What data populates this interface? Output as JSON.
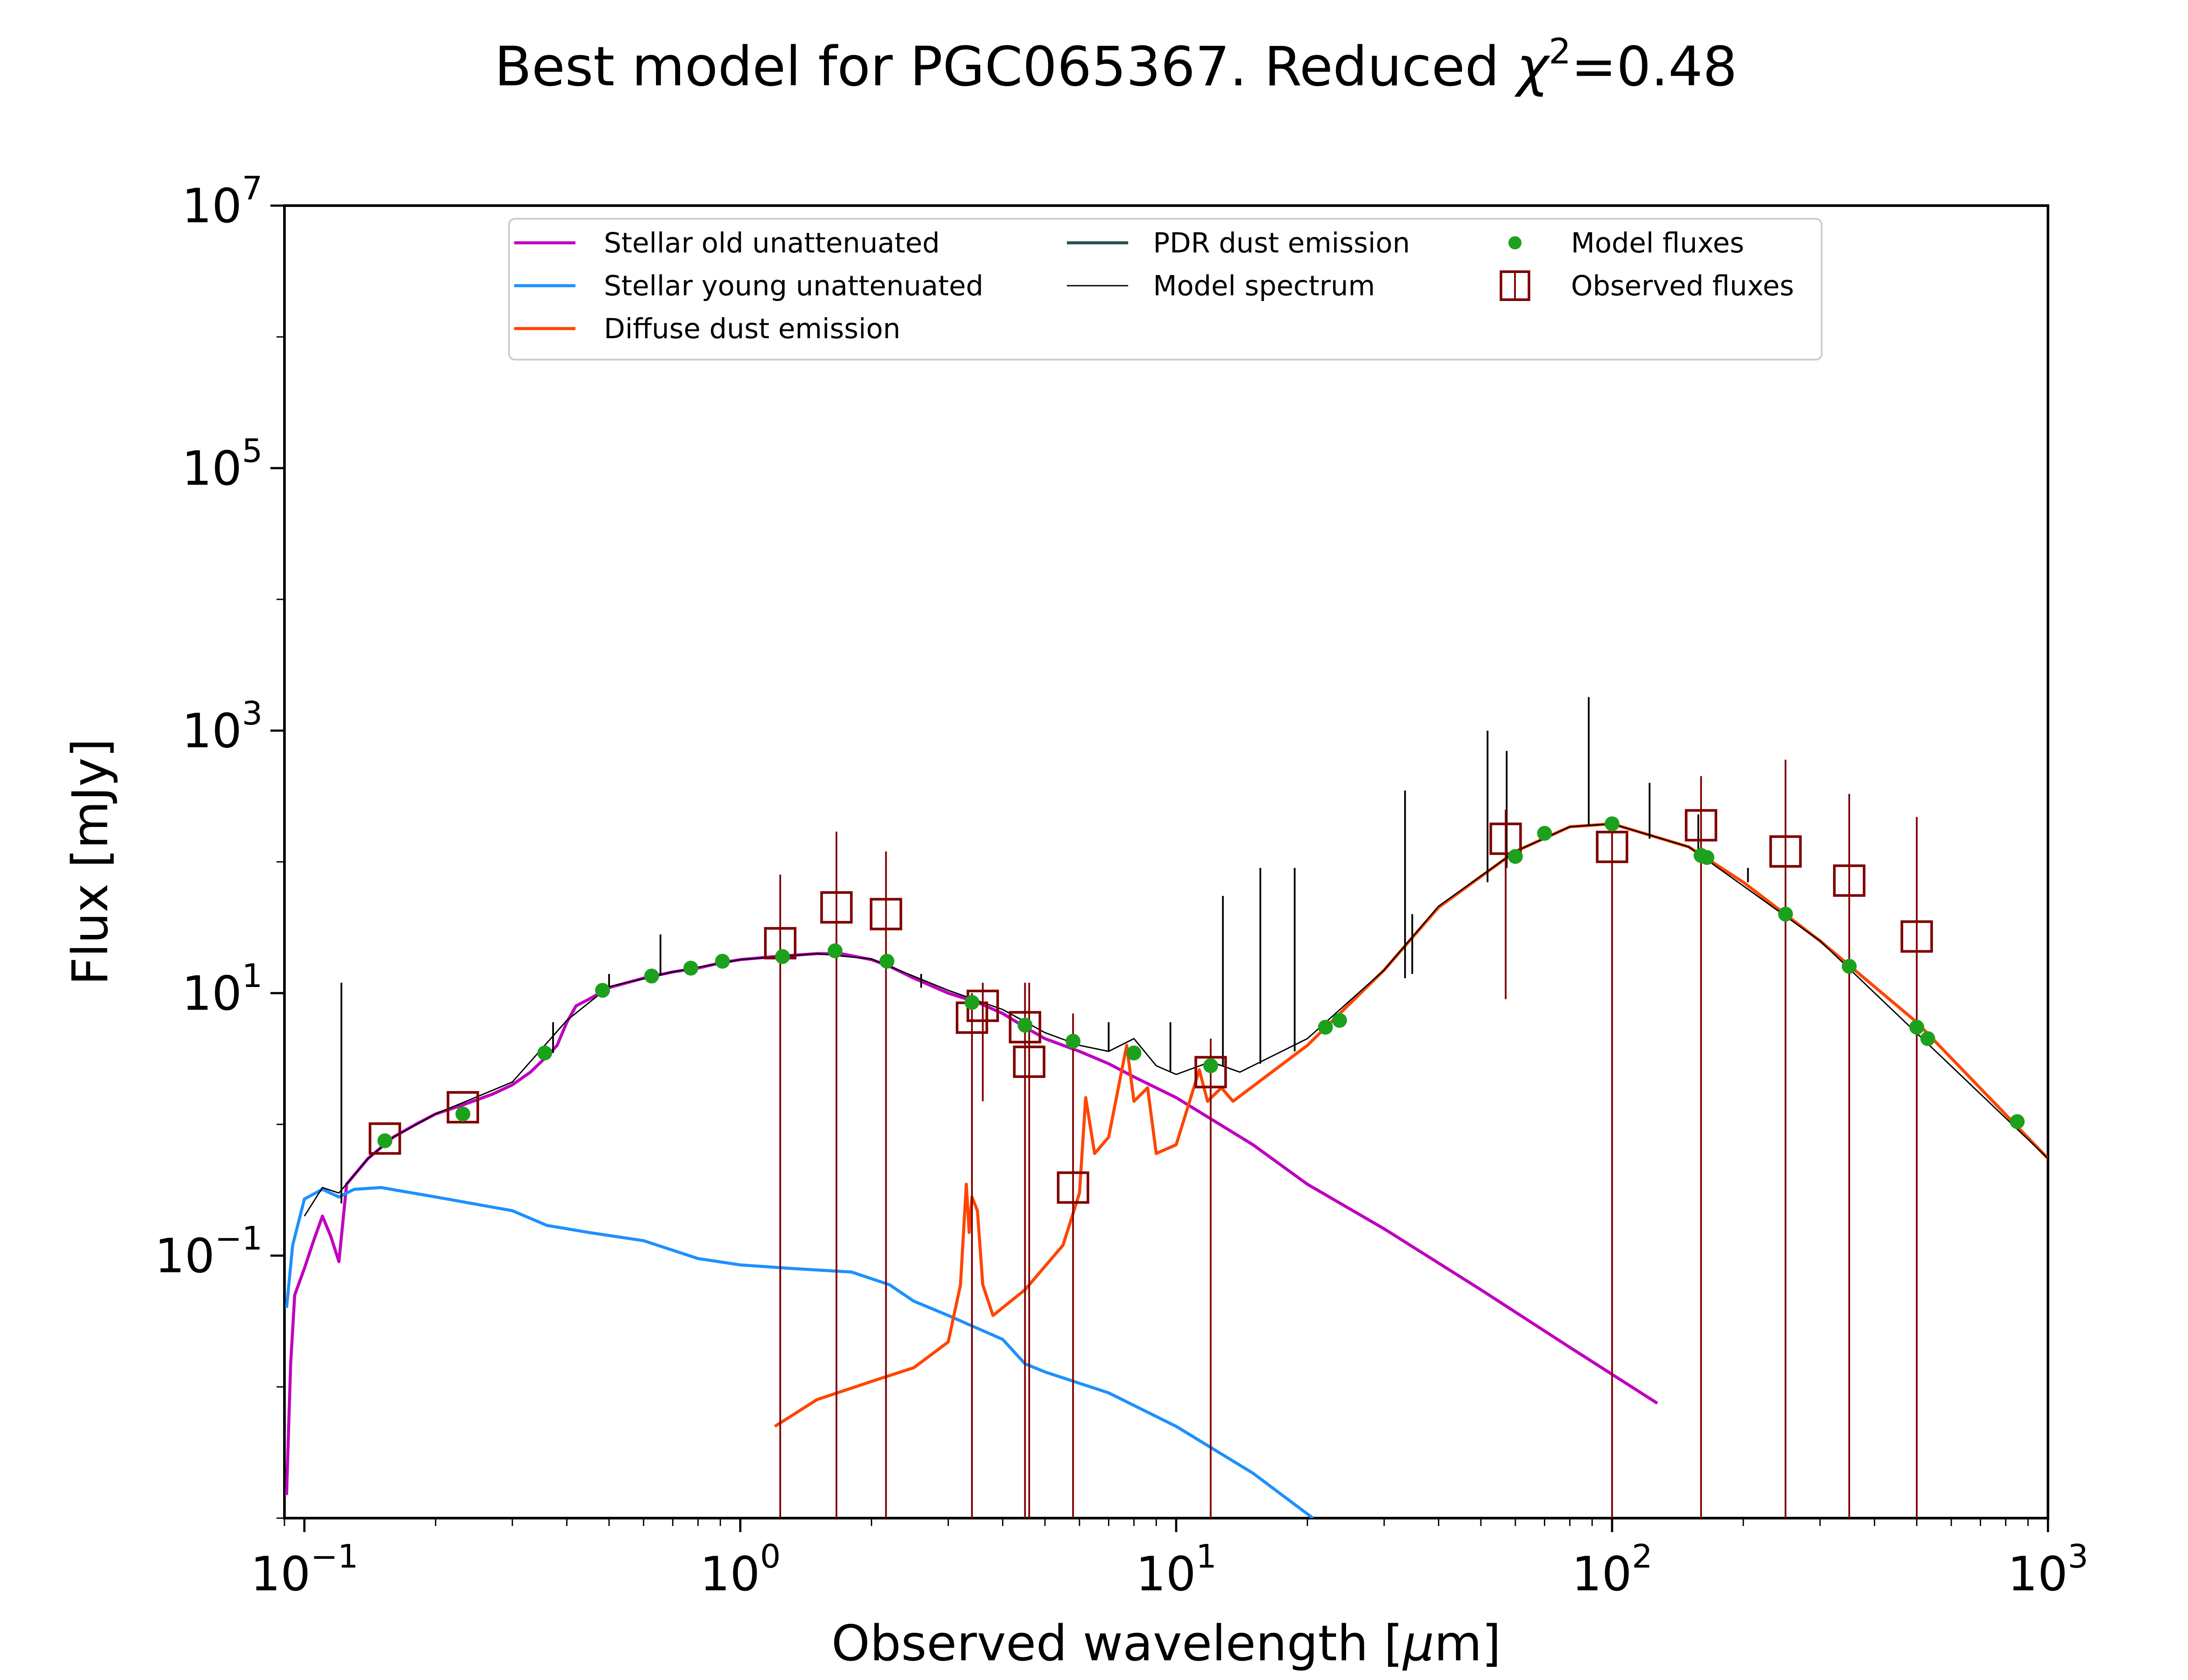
{
  "chart_data": {
    "type": "line",
    "title": "Best model for PGC065367. Reduced χ²=0.48",
    "title_parts": {
      "main": "Best model for PGC065367. Reduced ",
      "chi": "χ",
      "sup": "2",
      "value": "=0.48"
    },
    "xlabel_parts": {
      "text": "Observed wavelength [",
      "mu": "μ",
      "unit": "m]"
    },
    "ylabel": "Flux [mJy]",
    "xscale": "log",
    "yscale": "log",
    "xlim": [
      0.09,
      1000
    ],
    "ylim": [
      0.001,
      10000000
    ],
    "x_ticks": [
      {
        "value": 0.1,
        "base": "10",
        "exp": "−1"
      },
      {
        "value": 1,
        "base": "10",
        "exp": "0"
      },
      {
        "value": 10,
        "base": "10",
        "exp": "1"
      },
      {
        "value": 100,
        "base": "10",
        "exp": "2"
      },
      {
        "value": 1000,
        "base": "10",
        "exp": "3"
      }
    ],
    "y_ticks": [
      {
        "value": 0.1,
        "base": "10",
        "exp": "−1"
      },
      {
        "value": 10,
        "base": "10",
        "exp": "1"
      },
      {
        "value": 1000,
        "base": "10",
        "exp": "3"
      },
      {
        "value": 100000,
        "base": "10",
        "exp": "5"
      },
      {
        "value": 10000000,
        "base": "10",
        "exp": "7"
      }
    ],
    "grid": false,
    "legend_position": "top-center",
    "legend": [
      {
        "label": "Stellar old unattenuated",
        "color": "#bf00bf",
        "kind": "line"
      },
      {
        "label": "Stellar young unattenuated",
        "color": "#1e90ff",
        "kind": "line"
      },
      {
        "label": "Diffuse dust emission",
        "color": "#ff4500",
        "kind": "line"
      },
      {
        "label": "PDR dust emission",
        "color": "#2f4f4f",
        "kind": "line"
      },
      {
        "label": "Model spectrum",
        "color": "#000000",
        "kind": "thin-line"
      },
      {
        "label": "Model fluxes",
        "color": "#1ca11c",
        "kind": "dot"
      },
      {
        "label": "Observed fluxes",
        "color": "#800000",
        "kind": "square"
      }
    ],
    "series": [
      {
        "name": "Stellar old unattenuated",
        "color": "#bf00bf",
        "points": [
          [
            0.091,
            0.0015
          ],
          [
            0.093,
            0.015
          ],
          [
            0.095,
            0.05
          ],
          [
            0.1,
            0.08
          ],
          [
            0.105,
            0.13
          ],
          [
            0.11,
            0.2
          ],
          [
            0.115,
            0.14
          ],
          [
            0.12,
            0.09
          ],
          [
            0.125,
            0.35
          ],
          [
            0.14,
            0.55
          ],
          [
            0.16,
            0.8
          ],
          [
            0.18,
            1.0
          ],
          [
            0.2,
            1.2
          ],
          [
            0.23,
            1.4
          ],
          [
            0.27,
            1.7
          ],
          [
            0.3,
            2.0
          ],
          [
            0.33,
            2.5
          ],
          [
            0.36,
            3.3
          ],
          [
            0.38,
            4.0
          ],
          [
            0.4,
            6.0
          ],
          [
            0.42,
            8.0
          ],
          [
            0.45,
            9.0
          ],
          [
            0.5,
            11.0
          ],
          [
            0.6,
            13.0
          ],
          [
            0.7,
            14.5
          ],
          [
            0.8,
            15.5
          ],
          [
            0.9,
            17.0
          ],
          [
            1.0,
            18.0
          ],
          [
            1.2,
            19.0
          ],
          [
            1.5,
            20.0
          ],
          [
            1.7,
            20.0
          ],
          [
            2.0,
            18.0
          ],
          [
            2.2,
            16.0
          ],
          [
            2.5,
            13.0
          ],
          [
            3.0,
            10.0
          ],
          [
            3.5,
            8.5
          ],
          [
            4.0,
            7.0
          ],
          [
            4.5,
            5.5
          ],
          [
            5.0,
            4.5
          ],
          [
            6.0,
            3.6
          ],
          [
            7.0,
            2.9
          ],
          [
            8.0,
            2.3
          ],
          [
            10.0,
            1.6
          ],
          [
            15.0,
            0.7
          ],
          [
            20.0,
            0.35
          ],
          [
            30.0,
            0.16
          ],
          [
            50.0,
            0.055
          ],
          [
            80.0,
            0.02
          ],
          [
            127.0,
            0.0075
          ]
        ]
      },
      {
        "name": "Stellar young unattenuated",
        "color": "#1e90ff",
        "points": [
          [
            0.091,
            0.04
          ],
          [
            0.094,
            0.12
          ],
          [
            0.1,
            0.27
          ],
          [
            0.11,
            0.32
          ],
          [
            0.12,
            0.28
          ],
          [
            0.13,
            0.32
          ],
          [
            0.15,
            0.33
          ],
          [
            0.2,
            0.28
          ],
          [
            0.3,
            0.22
          ],
          [
            0.36,
            0.17
          ],
          [
            0.45,
            0.15
          ],
          [
            0.6,
            0.13
          ],
          [
            0.8,
            0.095
          ],
          [
            1.0,
            0.085
          ],
          [
            1.3,
            0.08
          ],
          [
            1.8,
            0.075
          ],
          [
            2.2,
            0.06
          ],
          [
            2.5,
            0.045
          ],
          [
            3.0,
            0.035
          ],
          [
            4.0,
            0.023
          ],
          [
            4.5,
            0.015
          ],
          [
            5.0,
            0.013
          ],
          [
            7.0,
            0.009
          ],
          [
            10.0,
            0.005
          ],
          [
            15.0,
            0.0022
          ],
          [
            20.6,
            0.001
          ]
        ]
      },
      {
        "name": "Diffuse dust emission",
        "color": "#ff4500",
        "points": [
          [
            1.2,
            0.005
          ],
          [
            1.5,
            0.008
          ],
          [
            2.0,
            0.011
          ],
          [
            2.5,
            0.014
          ],
          [
            3.0,
            0.022
          ],
          [
            3.2,
            0.06
          ],
          [
            3.3,
            0.35
          ],
          [
            3.35,
            0.15
          ],
          [
            3.4,
            0.28
          ],
          [
            3.5,
            0.22
          ],
          [
            3.6,
            0.06
          ],
          [
            3.8,
            0.035
          ],
          [
            4.5,
            0.055
          ],
          [
            5.5,
            0.12
          ],
          [
            6.0,
            0.3
          ],
          [
            6.2,
            1.6
          ],
          [
            6.5,
            0.6
          ],
          [
            7.0,
            0.8
          ],
          [
            7.7,
            4.0
          ],
          [
            8.0,
            1.5
          ],
          [
            8.6,
            1.9
          ],
          [
            9.0,
            0.6
          ],
          [
            10.0,
            0.7
          ],
          [
            11.3,
            2.6
          ],
          [
            11.8,
            1.5
          ],
          [
            12.7,
            1.9
          ],
          [
            13.5,
            1.5
          ],
          [
            20.0,
            4.0
          ],
          [
            30.0,
            15.0
          ],
          [
            40.0,
            45.0
          ],
          [
            60.0,
            120.0
          ],
          [
            80.0,
            185.0
          ],
          [
            100.0,
            195.0
          ],
          [
            150.0,
            130.0
          ],
          [
            200.0,
            70.0
          ],
          [
            300.0,
            25.0
          ],
          [
            500.0,
            6.0
          ],
          [
            1000.0,
            0.55
          ]
        ]
      },
      {
        "name": "Model spectrum",
        "color": "#000000",
        "points": [
          [
            0.1,
            0.2
          ],
          [
            0.11,
            0.33
          ],
          [
            0.12,
            0.3
          ],
          [
            0.14,
            0.55
          ],
          [
            0.16,
            0.8
          ],
          [
            0.2,
            1.2
          ],
          [
            0.3,
            2.1
          ],
          [
            0.4,
            6.2
          ],
          [
            0.5,
            11.2
          ],
          [
            0.7,
            14.5
          ],
          [
            1.0,
            18.0
          ],
          [
            1.5,
            20.0
          ],
          [
            2.0,
            18.2
          ],
          [
            3.0,
            10.5
          ],
          [
            4.0,
            7.5
          ],
          [
            5.0,
            5.0
          ],
          [
            6.0,
            4.0
          ],
          [
            7.0,
            3.6
          ],
          [
            8.0,
            4.5
          ],
          [
            9.0,
            2.8
          ],
          [
            10.0,
            2.4
          ],
          [
            12.0,
            3.0
          ],
          [
            14.0,
            2.5
          ],
          [
            20.0,
            4.5
          ],
          [
            30.0,
            15.0
          ],
          [
            40.0,
            46.0
          ],
          [
            60.0,
            120.0
          ],
          [
            80.0,
            185.0
          ],
          [
            100.0,
            195.0
          ],
          [
            150.0,
            130.0
          ],
          [
            300.0,
            25.0
          ],
          [
            1000.0,
            0.55
          ]
        ]
      }
    ],
    "emission_lines": [
      {
        "x": 0.1216,
        "y": [
          0.25,
          12
        ]
      },
      {
        "x": 0.372,
        "y": [
          3.5,
          6
        ]
      },
      {
        "x": 0.5,
        "y": [
          11,
          14
        ]
      },
      {
        "x": 0.656,
        "y": [
          14,
          28
        ]
      },
      {
        "x": 2.6,
        "y": [
          11,
          14
        ]
      },
      {
        "x": 7.0,
        "y": [
          3.6,
          6
        ]
      },
      {
        "x": 9.7,
        "y": [
          2.5,
          6
        ]
      },
      {
        "x": 12.8,
        "y": [
          2.8,
          55
        ]
      },
      {
        "x": 15.6,
        "y": [
          2.9,
          90
        ]
      },
      {
        "x": 18.7,
        "y": [
          3.6,
          90
        ]
      },
      {
        "x": 33.5,
        "y": [
          13,
          350
        ]
      },
      {
        "x": 34.8,
        "y": [
          14,
          40
        ]
      },
      {
        "x": 51.8,
        "y": [
          70,
          1000
        ]
      },
      {
        "x": 57.3,
        "y": [
          90,
          700
        ]
      },
      {
        "x": 88.4,
        "y": [
          190,
          1800
        ]
      },
      {
        "x": 121.9,
        "y": [
          150,
          400
        ]
      },
      {
        "x": 157.7,
        "y": [
          120,
          230
        ]
      },
      {
        "x": 205.0,
        "y": [
          70,
          90
        ]
      }
    ],
    "model_fluxes": [
      {
        "x": 0.153,
        "y": 0.75
      },
      {
        "x": 0.231,
        "y": 1.2
      },
      {
        "x": 0.356,
        "y": 3.5
      },
      {
        "x": 0.483,
        "y": 10.5
      },
      {
        "x": 0.626,
        "y": 13.5
      },
      {
        "x": 0.77,
        "y": 15.5
      },
      {
        "x": 0.91,
        "y": 17.5
      },
      {
        "x": 1.25,
        "y": 19.0
      },
      {
        "x": 1.65,
        "y": 21.0
      },
      {
        "x": 2.17,
        "y": 17.5
      },
      {
        "x": 3.4,
        "y": 8.5
      },
      {
        "x": 4.5,
        "y": 5.7
      },
      {
        "x": 5.8,
        "y": 4.3
      },
      {
        "x": 8.0,
        "y": 3.5
      },
      {
        "x": 12.0,
        "y": 2.8
      },
      {
        "x": 22.0,
        "y": 5.5
      },
      {
        "x": 23.7,
        "y": 6.2
      },
      {
        "x": 60.0,
        "y": 110.0
      },
      {
        "x": 70.0,
        "y": 165.0
      },
      {
        "x": 100.0,
        "y": 195.0
      },
      {
        "x": 160.0,
        "y": 112.0
      },
      {
        "x": 165.0,
        "y": 108.0
      },
      {
        "x": 250.0,
        "y": 40.0
      },
      {
        "x": 350.0,
        "y": 16.0
      },
      {
        "x": 500.0,
        "y": 5.5
      },
      {
        "x": 530.0,
        "y": 4.5
      },
      {
        "x": 850.0,
        "y": 1.05
      }
    ],
    "observed_fluxes": [
      {
        "x": 0.153,
        "y": 0.78,
        "ylo": 0.78,
        "yhi": 0.78
      },
      {
        "x": 0.231,
        "y": 1.35,
        "ylo": 1.35,
        "yhi": 1.35
      },
      {
        "x": 1.235,
        "y": 24.0,
        "ylo": 0.001,
        "yhi": 80.0
      },
      {
        "x": 1.662,
        "y": 45.0,
        "ylo": 0.001,
        "yhi": 170.0
      },
      {
        "x": 2.159,
        "y": 40.0,
        "ylo": 0.001,
        "yhi": 120.0
      },
      {
        "x": 3.4,
        "y": 6.5,
        "ylo": 0.001,
        "yhi": 10.0
      },
      {
        "x": 3.6,
        "y": 8.0,
        "ylo": 1.5,
        "yhi": 12.0
      },
      {
        "x": 4.5,
        "y": 5.5,
        "ylo": 0.001,
        "yhi": 12.0
      },
      {
        "x": 4.6,
        "y": 3.0,
        "ylo": 0.001,
        "yhi": 12.0
      },
      {
        "x": 5.8,
        "y": 0.33,
        "ylo": 0.001,
        "yhi": 7.0
      },
      {
        "x": 12.0,
        "y": 2.5,
        "ylo": 0.001,
        "yhi": 4.5
      },
      {
        "x": 57.0,
        "y": 150.0,
        "ylo": 9.0,
        "yhi": 250.0
      },
      {
        "x": 100.0,
        "y": 130.0,
        "ylo": 0.001,
        "yhi": 200.0
      },
      {
        "x": 160.0,
        "y": 190.0,
        "ylo": 0.001,
        "yhi": 450.0
      },
      {
        "x": 250.0,
        "y": 120.0,
        "ylo": 0.001,
        "yhi": 600.0
      },
      {
        "x": 350.0,
        "y": 72.0,
        "ylo": 0.001,
        "yhi": 330.0
      },
      {
        "x": 500.0,
        "y": 27.0,
        "ylo": 0.001,
        "yhi": 220.0
      }
    ]
  }
}
